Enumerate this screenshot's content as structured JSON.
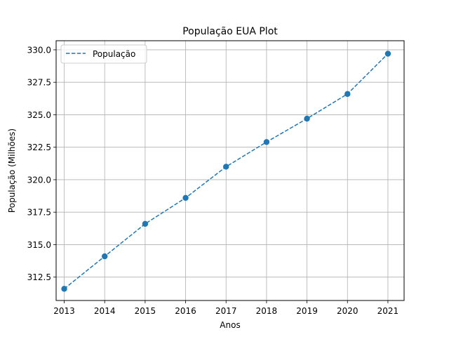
{
  "chart_data": {
    "type": "line",
    "title": "População EUA Plot",
    "xlabel": "Anos",
    "ylabel": "População (Milhões)",
    "x": [
      2013,
      2014,
      2015,
      2016,
      2017,
      2018,
      2019,
      2020,
      2021
    ],
    "xlim": [
      2012.8,
      2021.4
    ],
    "ylim": [
      310.7,
      330.7
    ],
    "x_ticks": [
      2013,
      2014,
      2015,
      2016,
      2017,
      2018,
      2019,
      2020,
      2021
    ],
    "y_ticks": [
      312.5,
      315.0,
      317.5,
      320.0,
      322.5,
      325.0,
      327.5,
      330.0
    ],
    "y_tick_labels": [
      "312.5",
      "315.0",
      "317.5",
      "320.0",
      "322.5",
      "325.0",
      "327.5",
      "330.0"
    ],
    "grid": true,
    "legend_position": "top-left",
    "series": [
      {
        "name": "População",
        "color": "#1f77b4",
        "line_style": "dashed",
        "markers": true,
        "values": [
          311.6,
          314.1,
          316.6,
          318.6,
          321.0,
          322.9,
          324.7,
          326.6,
          329.7
        ]
      }
    ]
  }
}
